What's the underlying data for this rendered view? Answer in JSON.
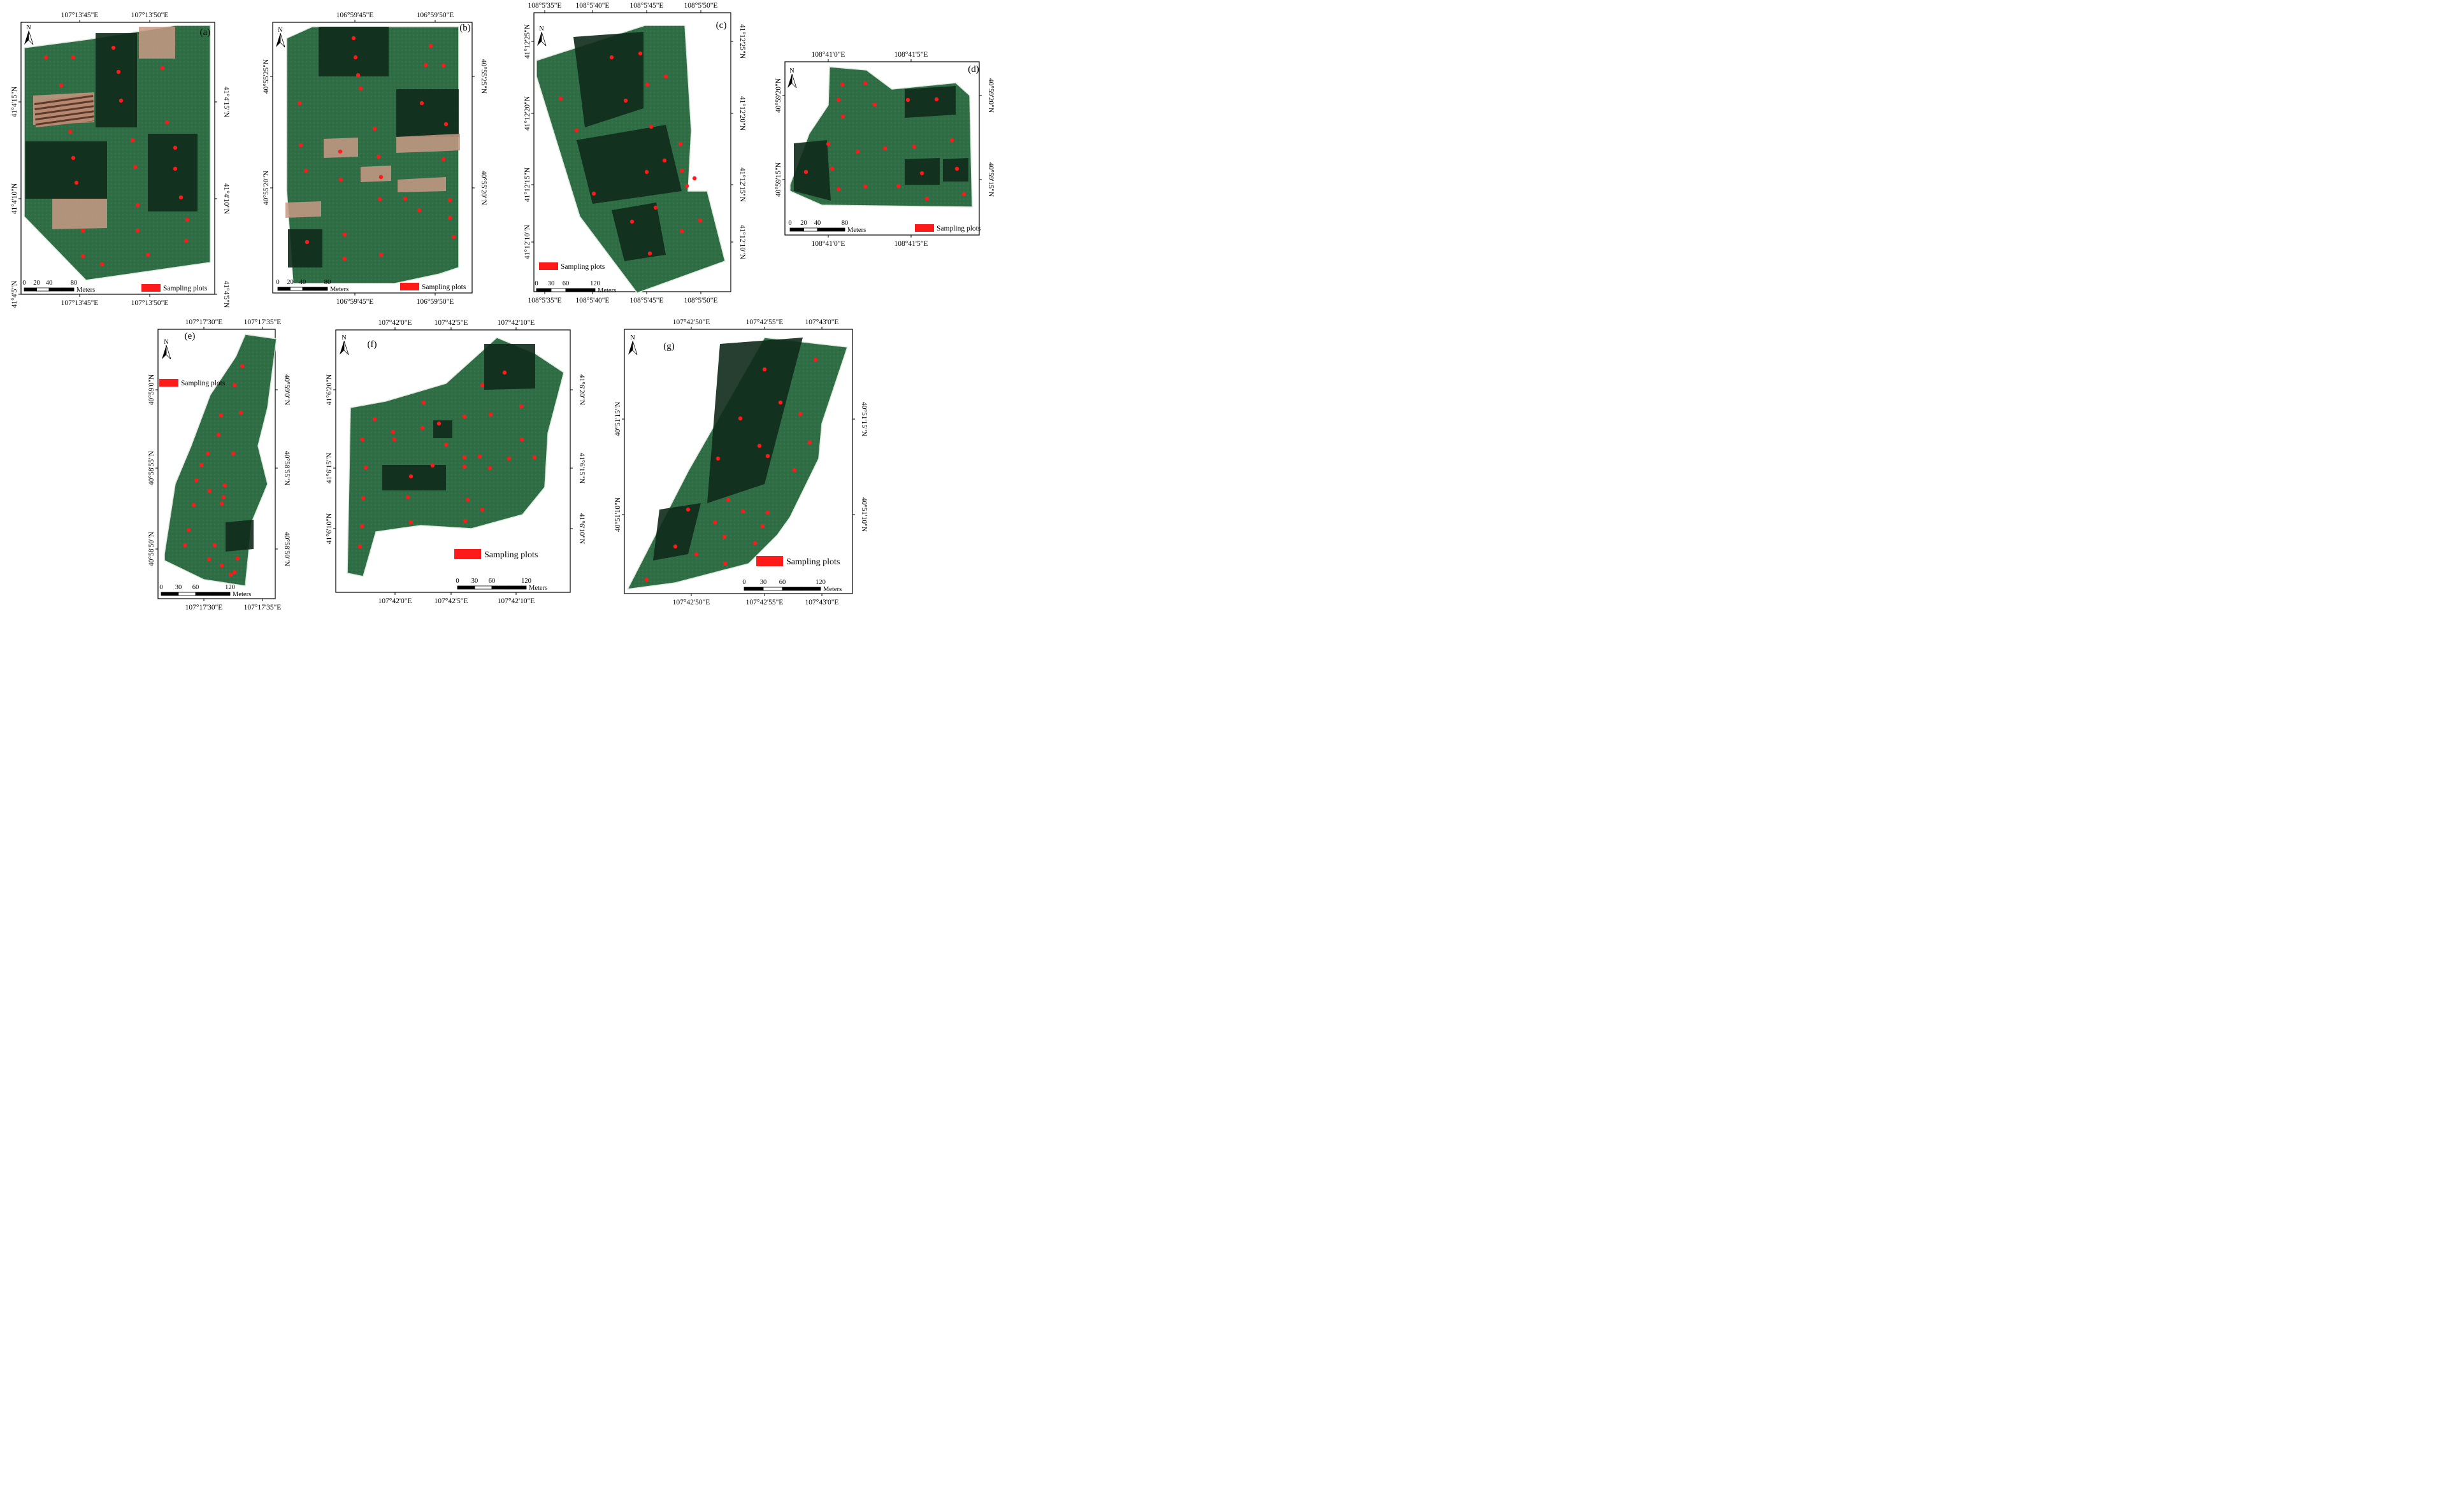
{
  "legend_label": "Sampling plots",
  "scale_unit": "Meters",
  "north_label": "N",
  "colors": {
    "sample_point": "#ff1a1a",
    "legend_swatch": "#ff1a1a",
    "field_base": "#2f6e45",
    "field_dark": "#0f2a1a",
    "field_light": "#4a8a60",
    "bare_soil": "#c89a86"
  },
  "panels": [
    {
      "id": "a",
      "label": "(a)",
      "top_lon": [
        "107°13'45\"E",
        "107°13'50\"E"
      ],
      "bottom_lon": [
        "107°13'45\"E",
        "107°13'50\"E"
      ],
      "left_lat": [
        "41°4'15\"N",
        "41°4'10\"N",
        "41°4'5\"N"
      ],
      "right_lat": [
        "41°4'15\"N",
        "41°4'10\"N",
        "41°4'5\"N"
      ],
      "scale_ticks": [
        "0",
        "20",
        "40",
        "80"
      ]
    },
    {
      "id": "b",
      "label": "(b)",
      "top_lon": [
        "106°59'45\"E",
        "106°59'50\"E"
      ],
      "bottom_lon": [
        "106°59'45\"E",
        "106°59'50\"E"
      ],
      "left_lat": [
        "40°55'25\"N",
        "40°55'20\"N"
      ],
      "right_lat": [
        "40°55'25\"N",
        "40°55'20\"N"
      ],
      "scale_ticks": [
        "0",
        "20",
        "40",
        "80"
      ]
    },
    {
      "id": "c",
      "label": "(c)",
      "top_lon": [
        "108°5'35\"E",
        "108°5'40\"E",
        "108°5'45\"E",
        "108°5'50\"E"
      ],
      "bottom_lon": [
        "108°5'35\"E",
        "108°5'40\"E",
        "108°5'45\"E",
        "108°5'50\"E"
      ],
      "left_lat": [
        "41°12'25\"N",
        "41°12'20\"N",
        "41°12'15\"N",
        "41°12'10\"N"
      ],
      "right_lat": [
        "41°12'25\"N",
        "41°12'20\"N",
        "41°12'15\"N",
        "41°12'10\"N"
      ],
      "scale_ticks": [
        "0",
        "30",
        "60",
        "120"
      ]
    },
    {
      "id": "d",
      "label": "(d)",
      "top_lon": [
        "108°41'0\"E",
        "108°41'5\"E"
      ],
      "bottom_lon": [
        "108°41'0\"E",
        "108°41'5\"E"
      ],
      "left_lat": [
        "40°59'20\"N",
        "40°59'15\"N"
      ],
      "right_lat": [
        "40°59'20\"N",
        "40°59'15\"N"
      ],
      "scale_ticks": [
        "0",
        "20",
        "40",
        "80"
      ]
    },
    {
      "id": "e",
      "label": "(e)",
      "top_lon": [
        "107°17'30\"E",
        "107°17'35\"E"
      ],
      "bottom_lon": [
        "107°17'30\"E",
        "107°17'35\"E"
      ],
      "left_lat": [
        "40°59'0\"N",
        "40°58'55\"N",
        "40°58'50\"N"
      ],
      "right_lat": [
        "40°59'0\"N",
        "40°58'55\"N",
        "40°58'50\"N"
      ],
      "scale_ticks": [
        "0",
        "30",
        "60",
        "120"
      ]
    },
    {
      "id": "f",
      "label": "(f)",
      "top_lon": [
        "107°42'0\"E",
        "107°42'5\"E",
        "107°42'10\"E"
      ],
      "bottom_lon": [
        "107°42'0\"E",
        "107°42'5\"E",
        "107°42'10\"E"
      ],
      "left_lat": [
        "41°6'20\"N",
        "41°6'15\"N",
        "41°6'10\"N"
      ],
      "right_lat": [
        "41°6'20\"N",
        "41°6'15\"N",
        "41°6'10\"N"
      ],
      "scale_ticks": [
        "0",
        "30",
        "60",
        "120"
      ]
    },
    {
      "id": "g",
      "label": "(g)",
      "top_lon": [
        "107°42'50\"E",
        "107°42'55\"E",
        "107°43'0\"E"
      ],
      "bottom_lon": [
        "107°42'50\"E",
        "107°42'55\"E",
        "107°43'0\"E"
      ],
      "left_lat": [
        "40°51'15\"N",
        "40°51'10\"N"
      ],
      "right_lat": [
        "40°51'15\"N",
        "40°51'10\"N"
      ],
      "scale_ticks": [
        "0",
        "30",
        "60",
        "120"
      ]
    }
  ]
}
